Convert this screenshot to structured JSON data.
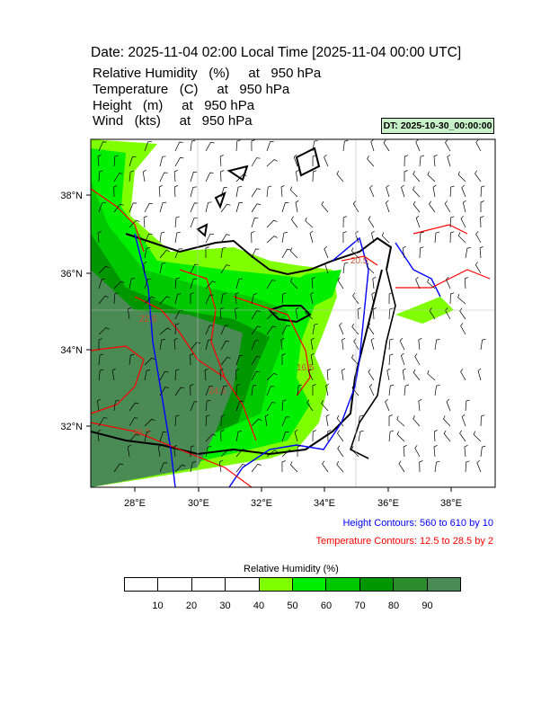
{
  "header": {
    "title": "Date: 2025-11-04  02:00 Local Time [2025-11-04  00:00 UTC]",
    "fields": [
      "Relative Humidity   (%)     at   950 hPa",
      "Temperature   (C)     at   950 hPa",
      "Height   (m)     at   950 hPa",
      "Wind   (kts)     at   950 hPa"
    ]
  },
  "badge": {
    "dt_label": "DT: 2025-10-30_00:00:00",
    "color": "#c8f0c8"
  },
  "map": {
    "lon_labels": [
      "28°E",
      "30°E",
      "32°E",
      "34°E",
      "36°E",
      "38°E"
    ],
    "lat_labels": [
      "38°N",
      "36°N",
      "34°N",
      "32°N"
    ],
    "lon_range": [
      26.6,
      39.3
    ],
    "lat_range": [
      30.4,
      39.5
    ],
    "contour_labels": {
      "temperature": [
        "16.5",
        "20.5",
        "22.5",
        "24.5",
        "26.5"
      ]
    }
  },
  "notes": {
    "height": "Height Contours: 560 to 610 by 10",
    "height_color": "#0000ff",
    "temperature": "Temperature Contours: 12.5 to 28.5 by 2",
    "temperature_color": "#ff0000"
  },
  "legend": {
    "title": "Relative Humidity  (%)",
    "ticks": [
      "10",
      "20",
      "30",
      "40",
      "50",
      "60",
      "70",
      "80",
      "90"
    ],
    "colors": [
      "#ffffff",
      "#ffffff",
      "#ffffff",
      "#ffffff",
      "#80ff00",
      "#00ef00",
      "#00c800",
      "#009600",
      "#2a8c2a",
      "#4a8a55"
    ]
  }
}
